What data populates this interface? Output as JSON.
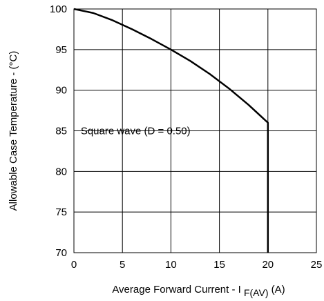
{
  "chart_data": {
    "type": "line",
    "xlabel": {
      "main": "Average Forward Current - I ",
      "subscript": "F(AV)",
      "unit": " (A)"
    },
    "ylabel": "Allowable Case Temperature - (°C)",
    "xlim": [
      0,
      25
    ],
    "ylim": [
      70,
      100
    ],
    "xticks": [
      0,
      5,
      10,
      15,
      20,
      25
    ],
    "yticks": [
      70,
      75,
      80,
      85,
      90,
      95,
      100
    ],
    "grid": true,
    "series": [
      {
        "x": [
          0,
          2,
          4,
          6,
          8,
          10,
          12,
          14,
          16,
          18,
          20,
          20
        ],
        "y": [
          100,
          99.5,
          98.6,
          97.5,
          96.3,
          95.0,
          93.6,
          92.0,
          90.2,
          88.2,
          86.0,
          70
        ],
        "color": "#000000"
      }
    ],
    "annotations": [
      {
        "text": "Square wave (D = 0.50)",
        "x": 0.7,
        "y": 85
      }
    ]
  }
}
